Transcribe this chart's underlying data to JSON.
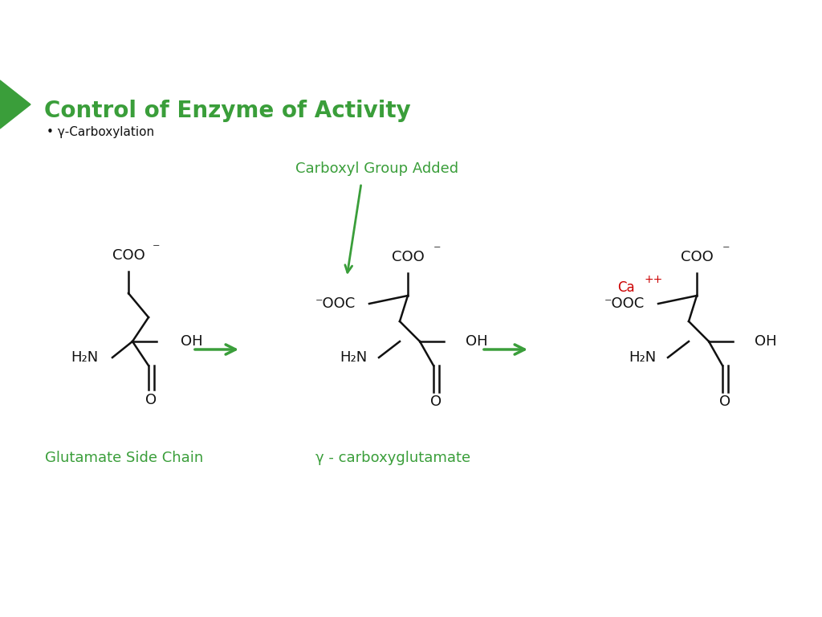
{
  "title": "Control of Enzyme of Activity",
  "subtitle": "γ-Carboxylation",
  "label_carboxyl": "Carboxyl Group Added",
  "label_glutamate": "Glutamate Side Chain",
  "label_gamma": "γ - carboxyglutamate",
  "green_color": "#3a9e3a",
  "red_color": "#cc0000",
  "black_color": "#111111",
  "bg_color": "#ffffff",
  "title_fontsize": 20,
  "subtitle_fontsize": 11,
  "label_fontsize": 13,
  "mol_fontsize": 12
}
